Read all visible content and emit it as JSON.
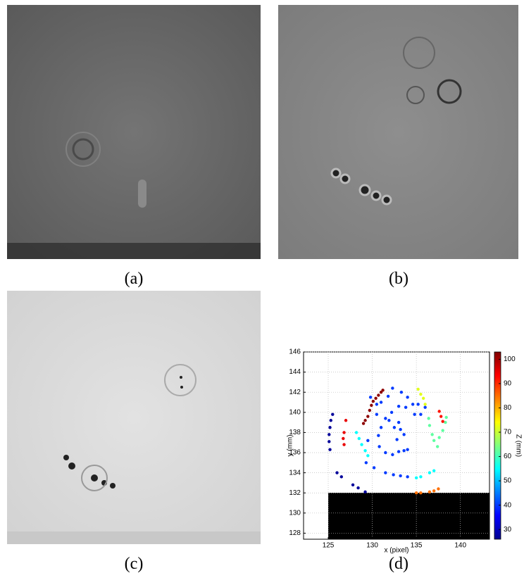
{
  "captions": [
    "(a)",
    "(b)",
    "(c)",
    "(d)"
  ],
  "chart_data": {
    "type": "scatter",
    "x_label": "x (pixel)",
    "y_label": "y (mm)",
    "colorbar_label": "Z (mm)",
    "xlim": [
      122.2,
      143.3
    ],
    "xticks": [
      125,
      130,
      135,
      140
    ],
    "ylim": [
      127.4,
      146
    ],
    "yticks": [
      128,
      130,
      132,
      134,
      136,
      138,
      140,
      142,
      144,
      146
    ],
    "zlim": [
      26,
      103
    ],
    "zticks": [
      30,
      40,
      50,
      60,
      70,
      80,
      90,
      100
    ],
    "colormap": "jet",
    "grid": true,
    "series": [
      {
        "x": [
          125.5,
          125.3,
          125.2,
          125.1,
          125.1,
          125.2,
          126,
          126.5,
          127.8,
          128.4,
          129.2,
          126.8,
          126.7,
          126.8,
          127,
          129.5,
          129.7,
          129.9,
          130.1,
          130.4,
          130.7,
          131,
          131.2,
          129.2,
          129,
          129.8,
          130.5,
          131,
          131.8,
          132.3,
          133.3,
          134,
          134.6,
          133.8,
          133,
          132.2,
          131.5,
          131,
          130.7,
          130.8,
          131.5,
          132.3,
          133,
          133.6,
          134,
          132.5,
          133,
          133.2,
          133.6,
          132.8,
          131.9,
          130.5,
          129.5,
          129.3,
          130.2,
          131.5,
          132.4,
          133.2,
          134,
          135.5,
          136,
          135.2,
          134.8,
          128.2,
          128.5,
          128.8,
          129.2,
          129.5,
          135,
          135.5,
          136.5,
          137,
          135,
          135.5,
          136.5,
          137,
          137.5,
          135.2,
          135.5,
          135.8,
          136,
          136.4,
          136.5,
          136.8,
          137,
          137.6,
          138,
          138.3,
          138.4,
          137.4,
          137.8,
          138,
          137.6
        ],
        "y": [
          139.8,
          139.2,
          138.5,
          137.8,
          137.1,
          136.3,
          134,
          133.6,
          132.8,
          132.5,
          132.1,
          138,
          137.4,
          136.8,
          139.2,
          139.6,
          140.2,
          140.7,
          141.1,
          141.4,
          141.7,
          142,
          142.2,
          139.2,
          138.9,
          141.5,
          140.8,
          141,
          141.6,
          142.4,
          142,
          141.5,
          140.8,
          140.5,
          140.6,
          140,
          139.4,
          138.5,
          137.7,
          136.6,
          136,
          135.8,
          136.1,
          136.2,
          136.3,
          138.5,
          139,
          138.3,
          137.8,
          137.3,
          139.2,
          139.8,
          137.2,
          135,
          134.5,
          134,
          133.8,
          133.7,
          133.6,
          139.8,
          140.5,
          140.8,
          139.8,
          138,
          137.4,
          136.8,
          136.2,
          135.7,
          133.5,
          133.6,
          134,
          134.2,
          132,
          132,
          132.1,
          132.2,
          132.4,
          142.3,
          141.8,
          141.4,
          140.8,
          139.4,
          138.7,
          137.8,
          137.2,
          137.5,
          138.2,
          139,
          139.5,
          136.6,
          139.6,
          139.1,
          140.1
        ],
        "z": [
          28,
          28,
          28,
          28,
          28,
          28,
          28,
          28,
          28,
          28,
          28,
          95,
          95,
          95,
          95,
          102,
          102,
          102,
          102,
          102,
          102,
          102,
          102,
          102,
          102,
          40,
          40,
          40,
          40,
          40,
          40,
          40,
          40,
          40,
          40,
          40,
          40,
          40,
          40,
          40,
          40,
          40,
          40,
          40,
          40,
          40,
          40,
          40,
          40,
          40,
          40,
          40,
          40,
          40,
          40,
          40,
          40,
          40,
          40,
          40,
          40,
          40,
          40,
          55,
          55,
          55,
          55,
          55,
          55,
          55,
          55,
          55,
          85,
          85,
          85,
          85,
          85,
          72,
          72,
          72,
          72,
          62,
          62,
          62,
          62,
          62,
          62,
          62,
          62,
          62,
          92,
          92,
          92
        ]
      }
    ]
  }
}
